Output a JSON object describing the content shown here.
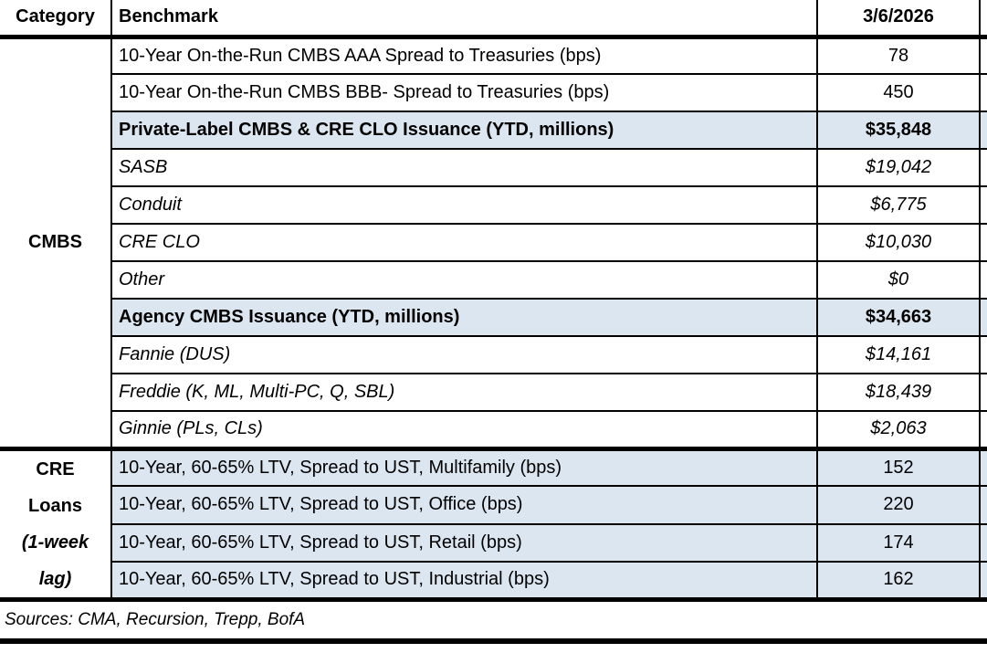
{
  "header": {
    "category": "Category",
    "benchmark": "Benchmark",
    "date": "3/6/2026"
  },
  "categories": {
    "cmbs": "CMBS",
    "cre_lines": [
      "CRE",
      "Loans",
      "(1-week",
      "lag)"
    ]
  },
  "rows": [
    {
      "benchmark": "10-Year On-the-Run CMBS AAA Spread to Treasuries (bps)",
      "value": "78"
    },
    {
      "benchmark": "10-Year On-the-Run CMBS BBB- Spread to Treasuries (bps)",
      "value": "450"
    },
    {
      "benchmark": "Private-Label CMBS & CRE CLO Issuance (YTD, millions)",
      "value": "$35,848"
    },
    {
      "benchmark": "SASB",
      "value": "$19,042"
    },
    {
      "benchmark": "Conduit",
      "value": "$6,775"
    },
    {
      "benchmark": "CRE CLO",
      "value": "$10,030"
    },
    {
      "benchmark": "Other",
      "value": "$0"
    },
    {
      "benchmark": "Agency CMBS Issuance (YTD, millions)",
      "value": "$34,663"
    },
    {
      "benchmark": "Fannie (DUS)",
      "value": "$14,161"
    },
    {
      "benchmark": "Freddie (K, ML, Multi-PC, Q, SBL)",
      "value": "$18,439"
    },
    {
      "benchmark": "Ginnie (PLs, CLs)",
      "value": "$2,063"
    },
    {
      "benchmark": "10-Year, 60-65% LTV, Spread to UST, Multifamily (bps)",
      "value": "152"
    },
    {
      "benchmark": "10-Year, 60-65% LTV, Spread to UST, Office (bps)",
      "value": "220"
    },
    {
      "benchmark": "10-Year, 60-65% LTV, Spread to UST, Retail (bps)",
      "value": "174"
    },
    {
      "benchmark": "10-Year, 60-65% LTV, Spread to UST, Industrial (bps)",
      "value": "162"
    }
  ],
  "footer": {
    "sources": "Sources: CMA, Recursion, Trepp, BofA"
  },
  "colors": {
    "highlight_blue": "#dce6f1",
    "border": "#000000",
    "text": "#000000",
    "background": "#ffffff"
  },
  "chart_data": {
    "type": "table",
    "columns": [
      "Category",
      "Benchmark",
      "3/6/2026"
    ],
    "rows": [
      [
        "CMBS",
        "10-Year On-the-Run CMBS AAA Spread to Treasuries (bps)",
        78
      ],
      [
        "CMBS",
        "10-Year On-the-Run CMBS BBB- Spread to Treasuries (bps)",
        450
      ],
      [
        "CMBS",
        "Private-Label CMBS & CRE CLO Issuance (YTD, millions)",
        35848
      ],
      [
        "CMBS",
        "SASB",
        19042
      ],
      [
        "CMBS",
        "Conduit",
        6775
      ],
      [
        "CMBS",
        "CRE CLO",
        10030
      ],
      [
        "CMBS",
        "Other",
        0
      ],
      [
        "CMBS",
        "Agency CMBS Issuance (YTD, millions)",
        34663
      ],
      [
        "CMBS",
        "Fannie (DUS)",
        14161
      ],
      [
        "CMBS",
        "Freddie (K, ML, Multi-PC, Q, SBL)",
        18439
      ],
      [
        "CMBS",
        "Ginnie (PLs, CLs)",
        2063
      ],
      [
        "CRE Loans (1-week lag)",
        "10-Year, 60-65% LTV, Spread to UST, Multifamily (bps)",
        152
      ],
      [
        "CRE Loans (1-week lag)",
        "10-Year, 60-65% LTV, Spread to UST, Office (bps)",
        220
      ],
      [
        "CRE Loans (1-week lag)",
        "10-Year, 60-65% LTV, Spread to UST, Retail (bps)",
        174
      ],
      [
        "CRE Loans (1-week lag)",
        "10-Year, 60-65% LTV, Spread to UST, Industrial (bps)",
        162
      ]
    ],
    "notes": "Sources: CMA, Recursion, Trepp, BofA"
  }
}
